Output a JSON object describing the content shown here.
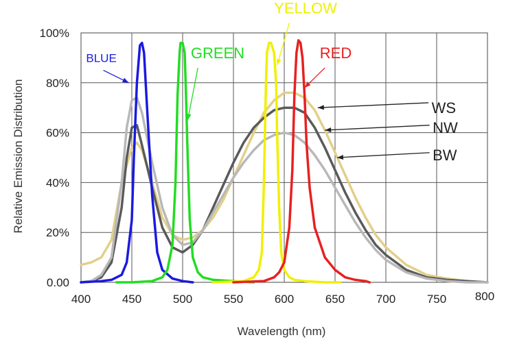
{
  "chart_data": {
    "type": "line",
    "xlabel": "Wavelength (nm)",
    "ylabel": "Relative Emission Distribution",
    "xlim": [
      400,
      800
    ],
    "ylim": [
      0,
      100
    ],
    "x_ticks": [
      "400",
      "450",
      "500",
      "550",
      "600",
      "650",
      "700",
      "750",
      "800"
    ],
    "y_ticks": [
      "0.00",
      "20%",
      "40%",
      "60%",
      "80%",
      "100%"
    ],
    "grid": true,
    "series": [
      {
        "name": "WS",
        "color": "#e3cf8a",
        "x": [
          400,
          410,
          420,
          430,
          440,
          450,
          455,
          460,
          470,
          480,
          490,
          500,
          510,
          520,
          530,
          540,
          550,
          560,
          570,
          580,
          590,
          600,
          610,
          620,
          630,
          640,
          650,
          660,
          670,
          680,
          690,
          700,
          720,
          740,
          760,
          780,
          800
        ],
        "y": [
          7,
          8,
          10,
          17,
          40,
          54,
          56,
          53,
          40,
          26,
          19,
          17,
          18,
          21,
          26,
          33,
          42,
          51,
          60,
          68,
          73,
          76,
          76,
          74,
          69,
          61,
          52,
          43,
          34,
          26,
          19,
          14,
          7,
          3,
          1.5,
          0.5,
          0
        ]
      },
      {
        "name": "NW",
        "color": "#5a5a5a",
        "x": [
          400,
          410,
          420,
          430,
          440,
          445,
          450,
          455,
          460,
          470,
          480,
          490,
          500,
          510,
          520,
          530,
          540,
          550,
          560,
          570,
          580,
          590,
          600,
          610,
          620,
          630,
          640,
          650,
          660,
          670,
          680,
          690,
          700,
          720,
          740,
          760,
          780,
          800
        ],
        "y": [
          0,
          0.5,
          2,
          8,
          30,
          50,
          62,
          63,
          55,
          38,
          22,
          14,
          12,
          15,
          21,
          30,
          39,
          48,
          56,
          62,
          66,
          69,
          70,
          70,
          68,
          62,
          54,
          45,
          36,
          28,
          21,
          15,
          11,
          5,
          2,
          1,
          0.5,
          0
        ]
      },
      {
        "name": "BW",
        "color": "#b8b8b8",
        "x": [
          400,
          410,
          420,
          430,
          440,
          445,
          450,
          455,
          460,
          470,
          480,
          490,
          500,
          510,
          520,
          530,
          540,
          550,
          560,
          570,
          580,
          590,
          600,
          610,
          620,
          630,
          640,
          650,
          660,
          670,
          680,
          690,
          700,
          720,
          740,
          760,
          780,
          800
        ],
        "y": [
          0,
          0.5,
          3,
          10,
          40,
          62,
          73,
          74,
          68,
          48,
          30,
          19,
          15,
          16,
          21,
          28,
          35,
          42,
          48,
          53,
          57,
          59,
          60,
          59,
          56,
          51,
          45,
          38,
          31,
          24,
          18,
          13,
          9,
          4,
          1.5,
          0.5,
          0,
          0
        ]
      },
      {
        "name": "BLUE",
        "color": "#1a1ae0",
        "x": [
          400,
          420,
          430,
          440,
          445,
          450,
          452,
          455,
          458,
          460,
          462,
          465,
          470,
          475,
          480,
          490,
          500,
          510
        ],
        "y": [
          0,
          0.5,
          1,
          3,
          8,
          25,
          50,
          80,
          95,
          96,
          92,
          70,
          35,
          12,
          5,
          1.5,
          0.5,
          0
        ]
      },
      {
        "name": "GREEN",
        "color": "#22dd22",
        "x": [
          435,
          450,
          470,
          480,
          485,
          490,
          493,
          495,
          497,
          498,
          500,
          502,
          503,
          505,
          507,
          510,
          515,
          520,
          530,
          550,
          570
        ],
        "y": [
          0,
          0,
          0.5,
          2,
          5,
          15,
          40,
          75,
          92,
          96,
          96,
          92,
          80,
          50,
          25,
          10,
          4,
          2,
          1,
          0.5,
          0
        ]
      },
      {
        "name": "YELLOW",
        "color": "#f0f000",
        "x": [
          530,
          560,
          570,
          575,
          578,
          580,
          582,
          583,
          585,
          587,
          590,
          592,
          593,
          595,
          597,
          600,
          605,
          610,
          620,
          640,
          655
        ],
        "y": [
          0,
          0.5,
          2,
          5,
          12,
          40,
          80,
          92,
          96,
          96,
          92,
          80,
          60,
          30,
          12,
          5,
          2,
          1,
          0.5,
          0,
          0
        ]
      },
      {
        "name": "RED",
        "color": "#e82020",
        "x": [
          550,
          580,
          590,
          595,
          600,
          605,
          608,
          610,
          612,
          614,
          616,
          618,
          620,
          622,
          625,
          630,
          640,
          650,
          660,
          670,
          680,
          684
        ],
        "y": [
          0,
          0.5,
          2,
          4,
          8,
          22,
          45,
          75,
          92,
          97,
          96,
          90,
          75,
          55,
          38,
          22,
          10,
          5,
          2,
          1,
          0.5,
          0
        ]
      }
    ],
    "annotations": [
      {
        "text": "BLUE",
        "color": "#1a1ae0",
        "size": 17,
        "tx": 405,
        "ty": 90,
        "lx1": 422,
        "ly1": 85,
        "lx2": 447,
        "ly2": 80
      },
      {
        "text": "GREEN",
        "color": "#22dd22",
        "size": 22,
        "tx": 508,
        "ty": 92,
        "lx1": 515,
        "ly1": 86,
        "lx2": 505,
        "ly2": 65
      },
      {
        "text": "YELLOW",
        "color": "#f0f000",
        "size": 22,
        "tx": 590,
        "ty": 110,
        "lx1": 605,
        "ly1": 104,
        "lx2": 593,
        "ly2": 87
      },
      {
        "text": "RED",
        "color": "#e82020",
        "size": 22,
        "tx": 635,
        "ty": 92,
        "lx1": 640,
        "ly1": 86,
        "lx2": 620,
        "ly2": 78
      },
      {
        "text": "WS",
        "color": "#222222",
        "size": 22,
        "tx": 745,
        "ty": 70,
        "lx1": 742,
        "ly1": 72,
        "lx2": 633,
        "ly2": 70
      },
      {
        "text": "NW",
        "color": "#222222",
        "size": 22,
        "tx": 746,
        "ty": 62,
        "lx1": 743,
        "ly1": 63,
        "lx2": 640,
        "ly2": 61
      },
      {
        "text": "BW",
        "color": "#222222",
        "size": 22,
        "tx": 746,
        "ty": 51,
        "lx1": 743,
        "ly1": 52,
        "lx2": 652,
        "ly2": 50
      }
    ]
  }
}
